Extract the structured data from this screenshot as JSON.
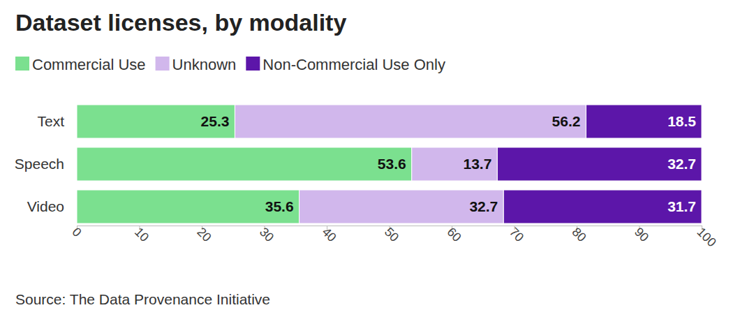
{
  "chart_data": {
    "type": "bar",
    "orientation": "horizontal",
    "stacked": true,
    "data_labels": true,
    "grid": false,
    "legend": "top-left",
    "title": "Dataset licenses, by modality",
    "source": "Source: The Data Provenance Initiative",
    "categories": [
      "Text",
      "Speech",
      "Video"
    ],
    "series": [
      {
        "name": "Commercial Use",
        "color": "#7be08f",
        "values": [
          25.3,
          53.6,
          35.6
        ]
      },
      {
        "name": "Unknown",
        "color": "#d1b7ec",
        "values": [
          56.2,
          13.7,
          32.7
        ]
      },
      {
        "name": "Non-Commercial Use Only",
        "color": "#5c16a9",
        "values": [
          18.5,
          32.7,
          31.7
        ]
      }
    ],
    "xlim": [
      0,
      100
    ],
    "xticks": [
      0,
      10,
      20,
      30,
      40,
      50,
      60,
      70,
      80,
      90,
      100
    ]
  }
}
